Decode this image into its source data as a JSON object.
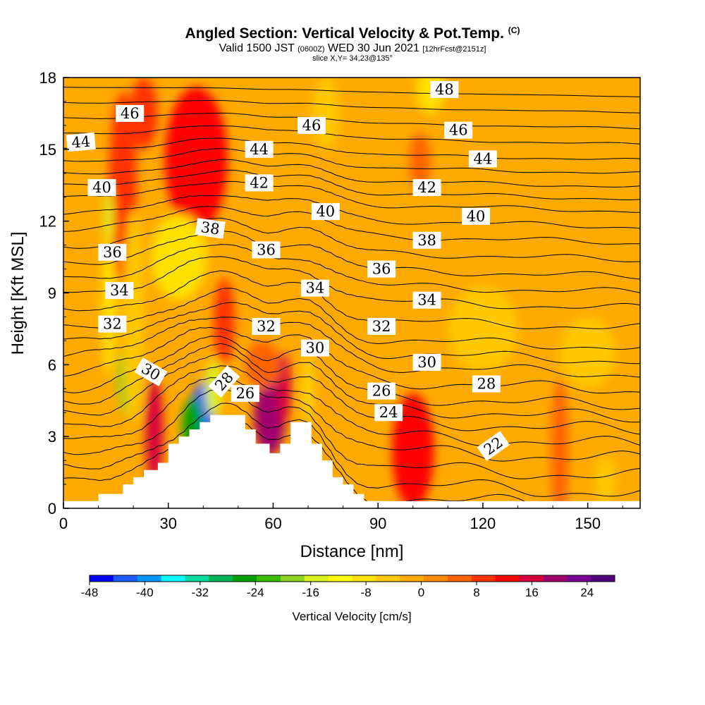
{
  "header": {
    "title": "Angled Section: Vertical Velocity & Pot.Temp.",
    "copyright": "(C)",
    "valid_prefix": "Valid 1500 JST",
    "utc": "(0600Z)",
    "valid_date": "WED 30 Jun 2021",
    "forecast": "[12hrFcst@2151z]",
    "slice": "slice X,Y= 34,23@135°"
  },
  "chart_data": {
    "type": "heatmap",
    "xlabel": "Distance [nm]",
    "ylabel": "Height [Kft MSL]",
    "xlim": [
      0,
      165
    ],
    "ylim": [
      0,
      18
    ],
    "xticks": [
      0,
      30,
      60,
      90,
      120,
      150
    ],
    "yticks": [
      0,
      3,
      6,
      9,
      12,
      15,
      18
    ],
    "terrain": [
      [
        10,
        0.6
      ],
      [
        17,
        0.6
      ],
      [
        17,
        1.0
      ],
      [
        20,
        1.0
      ],
      [
        20,
        1.3
      ],
      [
        23,
        1.3
      ],
      [
        23,
        1.6
      ],
      [
        27,
        1.6
      ],
      [
        27,
        1.9
      ],
      [
        30,
        1.9
      ],
      [
        30,
        2.7
      ],
      [
        33,
        2.7
      ],
      [
        33,
        3.0
      ],
      [
        36,
        3.0
      ],
      [
        36,
        3.3
      ],
      [
        39,
        3.3
      ],
      [
        39,
        3.6
      ],
      [
        42,
        3.6
      ],
      [
        42,
        3.9
      ],
      [
        52,
        3.9
      ],
      [
        52,
        3.3
      ],
      [
        55,
        3.3
      ],
      [
        55,
        2.7
      ],
      [
        59,
        2.7
      ],
      [
        59,
        2.3
      ],
      [
        62,
        2.3
      ],
      [
        62,
        2.7
      ],
      [
        65,
        2.7
      ],
      [
        65,
        3.6
      ],
      [
        71,
        3.6
      ],
      [
        71,
        2.7
      ],
      [
        74,
        2.7
      ],
      [
        74,
        2.0
      ],
      [
        77,
        2.0
      ],
      [
        77,
        1.3
      ],
      [
        80,
        1.3
      ],
      [
        80,
        1.0
      ],
      [
        83,
        1.0
      ],
      [
        83,
        0.6
      ],
      [
        86,
        0.6
      ],
      [
        86,
        0.3
      ],
      [
        89,
        0.3
      ]
    ],
    "colorbar": {
      "label": "Vertical Velocity [cm/s]",
      "tick_labels": [
        "-48",
        "-40",
        "-32",
        "-24",
        "-16",
        "-8",
        "0",
        "8",
        "16",
        "24"
      ],
      "range": [
        -48,
        28
      ],
      "colors": [
        "#0000ff",
        "#1e5aff",
        "#0096ff",
        "#00ffff",
        "#00dca0",
        "#00b45a",
        "#00a000",
        "#3cbe00",
        "#8cd21e",
        "#dcf01e",
        "#ffff00",
        "#ffe100",
        "#ffc800",
        "#ffaa00",
        "#ff8c00",
        "#ff6400",
        "#ff3200",
        "#ff0000",
        "#d7003c",
        "#a0006e",
        "#780096",
        "#500078"
      ]
    },
    "velocity_blobs": [
      {
        "x": 38,
        "y": 14.6,
        "rx": 9,
        "ry": 3,
        "v": 12
      },
      {
        "x": 17,
        "y": 12.2,
        "rx": 2.5,
        "ry": 1.6,
        "v": 24
      },
      {
        "x": 17,
        "y": 13.4,
        "rx": 4,
        "ry": 4,
        "v": 10
      },
      {
        "x": 23,
        "y": 16.5,
        "rx": 4,
        "ry": 1.5,
        "v": 10
      },
      {
        "x": 13,
        "y": 12.0,
        "rx": 1.4,
        "ry": 1.4,
        "v": -14
      },
      {
        "x": 19,
        "y": 5.4,
        "rx": 3.5,
        "ry": 1.5,
        "v": -20
      },
      {
        "x": 21,
        "y": 6.7,
        "rx": 1.5,
        "ry": 1.4,
        "v": -10
      },
      {
        "x": 26,
        "y": 3.2,
        "rx": 2.5,
        "ry": 2.3,
        "v": 16
      },
      {
        "x": 33,
        "y": 10.5,
        "rx": 8,
        "ry": 1.8,
        "v": -7
      },
      {
        "x": 20,
        "y": 8.0,
        "rx": 3,
        "ry": 4.5,
        "v": -6
      },
      {
        "x": 13,
        "y": 8.5,
        "rx": 2,
        "ry": 3,
        "v": -10
      },
      {
        "x": 40,
        "y": 3.8,
        "rx": 3.5,
        "ry": 1.5,
        "v": -44
      },
      {
        "x": 37,
        "y": 3.4,
        "rx": 3,
        "ry": 1.2,
        "v": -26
      },
      {
        "x": 43,
        "y": 5.0,
        "rx": 2.5,
        "ry": 1.2,
        "v": -16
      },
      {
        "x": 46,
        "y": 7.8,
        "rx": 3,
        "ry": 1.8,
        "v": 10
      },
      {
        "x": 59,
        "y": 3.8,
        "rx": 4.5,
        "ry": 1.6,
        "v": 18
      },
      {
        "x": 63,
        "y": 5.0,
        "rx": 2,
        "ry": 1.5,
        "v": 16
      },
      {
        "x": 70,
        "y": 5.0,
        "rx": 1.2,
        "ry": 1.5,
        "v": -10
      },
      {
        "x": 57,
        "y": 6.0,
        "rx": 5,
        "ry": 1,
        "v": 6
      },
      {
        "x": 100,
        "y": 2.4,
        "rx": 6,
        "ry": 2.4,
        "v": 11
      },
      {
        "x": 142,
        "y": 2.4,
        "rx": 2.5,
        "ry": 3,
        "v": 7
      },
      {
        "x": 155,
        "y": 1.2,
        "rx": 3,
        "ry": 1,
        "v": -6
      },
      {
        "x": 105,
        "y": 17.5,
        "rx": 4,
        "ry": 1,
        "v": -7
      },
      {
        "x": 75,
        "y": 16.5,
        "rx": 4,
        "ry": 1.5,
        "v": -6
      },
      {
        "x": 102,
        "y": 14.5,
        "rx": 3,
        "ry": 1.2,
        "v": 5
      },
      {
        "x": 120,
        "y": 7.5,
        "rx": 10,
        "ry": 1.8,
        "v": -4
      },
      {
        "x": 140,
        "y": 11.5,
        "rx": 8,
        "ry": 2,
        "v": -3
      },
      {
        "x": 150,
        "y": 6.5,
        "rx": 8,
        "ry": 1.5,
        "v": -4
      }
    ],
    "contours": [
      {
        "label": "22",
        "base": 1.3,
        "lx": 123,
        "ly": 2.6,
        "rot": -35
      },
      {
        "label": "24",
        "base": 2.7,
        "lx": 93,
        "ly": 4.0,
        "rot": 0
      },
      {
        "label": "26",
        "base": 3.9,
        "lx": 52,
        "ly": 4.8,
        "rot": 0
      },
      {
        "label": "28",
        "base": 4.9,
        "lx": 46,
        "ly": 5.3,
        "rot": -48
      },
      {
        "label": "30",
        "base": 6.2,
        "lx": 25,
        "ly": 5.7,
        "rot": 30
      },
      {
        "label": "32",
        "base": 7.3,
        "lx": 14,
        "ly": 7.7,
        "rot": 0
      },
      {
        "label": "34",
        "base": 8.9,
        "lx": 16,
        "ly": 9.1,
        "rot": 0
      },
      {
        "label": "36",
        "base": 10.2,
        "lx": 14,
        "ly": 10.7,
        "rot": 0
      },
      {
        "label": "38",
        "base": 11.6,
        "lx": 42,
        "ly": 11.7,
        "rot": 8
      },
      {
        "label": "40",
        "base": 12.9,
        "lx": 11,
        "ly": 13.4,
        "rot": 0
      },
      {
        "label": "42",
        "base": 13.9,
        "lx": 56,
        "ly": 13.6,
        "rot": 0
      },
      {
        "label": "44",
        "base": 15.0,
        "lx": 5,
        "ly": 15.3,
        "rot": -5
      },
      {
        "label": "46",
        "base": 16.3,
        "lx": 19,
        "ly": 16.5,
        "rot": 0
      },
      {
        "label": "48",
        "base": 17.6,
        "lx": 109,
        "ly": 17.5,
        "rot": 0
      }
    ],
    "extra_contour_labels": [
      {
        "label": "46",
        "x": 71,
        "y": 16.0
      },
      {
        "label": "46",
        "x": 113,
        "y": 15.8
      },
      {
        "label": "44",
        "x": 56,
        "y": 15.0
      },
      {
        "label": "44",
        "x": 120,
        "y": 14.6
      },
      {
        "label": "42",
        "x": 104,
        "y": 13.4
      },
      {
        "label": "40",
        "x": 75,
        "y": 12.4
      },
      {
        "label": "40",
        "x": 118,
        "y": 12.2
      },
      {
        "label": "38",
        "x": 104,
        "y": 11.2
      },
      {
        "label": "36",
        "x": 58,
        "y": 10.8
      },
      {
        "label": "36",
        "x": 91,
        "y": 10.0
      },
      {
        "label": "34",
        "x": 72,
        "y": 9.2
      },
      {
        "label": "34",
        "x": 104,
        "y": 8.7
      },
      {
        "label": "32",
        "x": 58,
        "y": 7.6
      },
      {
        "label": "32",
        "x": 91,
        "y": 7.6
      },
      {
        "label": "30",
        "x": 72,
        "y": 6.7
      },
      {
        "label": "30",
        "x": 104,
        "y": 6.1
      },
      {
        "label": "28",
        "x": 121,
        "y": 5.2
      },
      {
        "label": "26",
        "x": 91,
        "y": 4.9
      }
    ]
  }
}
